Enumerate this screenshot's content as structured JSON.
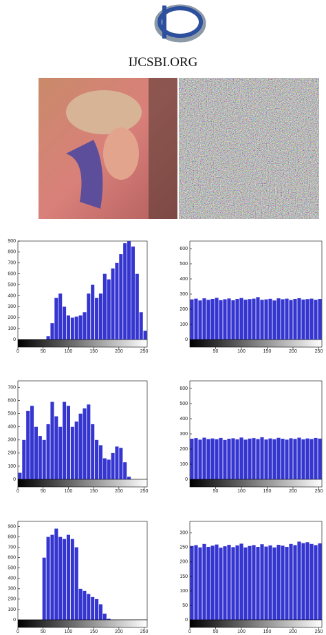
{
  "header": {
    "title": "IJCSBI.ORG"
  },
  "chart_data": [
    {
      "type": "histogram",
      "color": "#3535d0",
      "bins": [
        0,
        8,
        16,
        24,
        32,
        40,
        48,
        56,
        64,
        72,
        80,
        88,
        96,
        104,
        112,
        120,
        128,
        136,
        144,
        152,
        160,
        168,
        176,
        184,
        192,
        200,
        208,
        216,
        224,
        232,
        240,
        248,
        256
      ],
      "values": [
        0,
        0,
        0,
        0,
        0,
        0,
        0,
        30,
        150,
        380,
        420,
        300,
        220,
        200,
        210,
        220,
        250,
        420,
        500,
        380,
        420,
        600,
        550,
        650,
        700,
        780,
        880,
        900,
        850,
        600,
        250,
        80
      ],
      "xlim": [
        0,
        256
      ],
      "ylim": [
        0,
        900
      ],
      "xticks": [
        0,
        50,
        100,
        150,
        200,
        250
      ],
      "yticks": [
        0,
        100,
        200,
        300,
        400,
        500,
        600,
        700,
        800,
        900
      ]
    },
    {
      "type": "histogram",
      "color": "#3535d0",
      "bins": [
        0,
        8,
        16,
        24,
        32,
        40,
        48,
        56,
        64,
        72,
        80,
        88,
        96,
        104,
        112,
        120,
        128,
        136,
        144,
        152,
        160,
        168,
        176,
        184,
        192,
        200,
        208,
        216,
        224,
        232,
        240,
        248,
        256
      ],
      "values": [
        265,
        270,
        258,
        272,
        262,
        268,
        275,
        260,
        266,
        271,
        259,
        268,
        274,
        263,
        267,
        270,
        280,
        262,
        265,
        269,
        258,
        272,
        266,
        270,
        261,
        268,
        273,
        264,
        267,
        270,
        262,
        268
      ],
      "xlim": [
        0,
        256
      ],
      "ylim": [
        0,
        650
      ],
      "xticks": [
        50,
        100,
        150,
        200,
        250
      ],
      "yticks": [
        0,
        100,
        200,
        300,
        400,
        500,
        600
      ]
    },
    {
      "type": "histogram",
      "color": "#3535d0",
      "bins": [
        0,
        8,
        16,
        24,
        32,
        40,
        48,
        56,
        64,
        72,
        80,
        88,
        96,
        104,
        112,
        120,
        128,
        136,
        144,
        152,
        160,
        168,
        176,
        184,
        192,
        200,
        208,
        216,
        224,
        232,
        240,
        248,
        256
      ],
      "values": [
        50,
        300,
        520,
        560,
        400,
        330,
        300,
        420,
        590,
        480,
        400,
        590,
        560,
        400,
        440,
        500,
        540,
        570,
        420,
        300,
        260,
        160,
        150,
        200,
        250,
        240,
        130,
        20,
        0,
        0,
        0,
        0
      ],
      "xlim": [
        0,
        256
      ],
      "ylim": [
        0,
        750
      ],
      "xticks": [
        0,
        50,
        100,
        150,
        200,
        250
      ],
      "yticks": [
        0,
        100,
        200,
        300,
        400,
        500,
        600,
        700
      ]
    },
    {
      "type": "histogram",
      "color": "#3535d0",
      "bins": [
        0,
        8,
        16,
        24,
        32,
        40,
        48,
        56,
        64,
        72,
        80,
        88,
        96,
        104,
        112,
        120,
        128,
        136,
        144,
        152,
        160,
        168,
        176,
        184,
        192,
        200,
        208,
        216,
        224,
        232,
        240,
        248,
        256
      ],
      "values": [
        268,
        272,
        262,
        275,
        266,
        270,
        265,
        273,
        260,
        268,
        271,
        264,
        276,
        262,
        269,
        272,
        266,
        278,
        263,
        270,
        265,
        274,
        268,
        262,
        271,
        267,
        275,
        264,
        270,
        266,
        273,
        269
      ],
      "xlim": [
        0,
        256
      ],
      "ylim": [
        0,
        650
      ],
      "xticks": [
        50,
        100,
        150,
        200,
        250
      ],
      "yticks": [
        0,
        100,
        200,
        300,
        400,
        500,
        600
      ]
    },
    {
      "type": "histogram",
      "color": "#3535d0",
      "bins": [
        0,
        8,
        16,
        24,
        32,
        40,
        48,
        56,
        64,
        72,
        80,
        88,
        96,
        104,
        112,
        120,
        128,
        136,
        144,
        152,
        160,
        168,
        176,
        184,
        192,
        200,
        208,
        216,
        224,
        232,
        240,
        248,
        256
      ],
      "values": [
        0,
        0,
        0,
        0,
        0,
        0,
        600,
        800,
        820,
        880,
        800,
        780,
        820,
        780,
        700,
        300,
        280,
        250,
        220,
        200,
        150,
        60,
        10,
        0,
        0,
        0,
        0,
        0,
        0,
        0,
        0,
        0
      ],
      "xlim": [
        0,
        256
      ],
      "ylim": [
        0,
        950
      ],
      "xticks": [
        0,
        50,
        100,
        150,
        200,
        250
      ],
      "yticks": [
        0,
        100,
        200,
        300,
        400,
        500,
        600,
        700,
        800,
        900
      ]
    },
    {
      "type": "histogram",
      "color": "#3535d0",
      "bins": [
        0,
        8,
        16,
        24,
        32,
        40,
        48,
        56,
        64,
        72,
        80,
        88,
        96,
        104,
        112,
        120,
        128,
        136,
        144,
        152,
        160,
        168,
        176,
        184,
        192,
        200,
        208,
        216,
        224,
        232,
        240,
        248,
        256
      ],
      "values": [
        255,
        258,
        250,
        262,
        252,
        256,
        260,
        249,
        254,
        259,
        251,
        257,
        263,
        250,
        255,
        258,
        252,
        261,
        253,
        257,
        250,
        259,
        256,
        252,
        262,
        258,
        270,
        265,
        268,
        262,
        258,
        264
      ],
      "xlim": [
        0,
        256
      ],
      "ylim": [
        0,
        340
      ],
      "xticks": [
        0,
        50,
        100,
        150,
        200,
        250
      ],
      "yticks": [
        0,
        50,
        100,
        150,
        200,
        250,
        300
      ]
    }
  ]
}
